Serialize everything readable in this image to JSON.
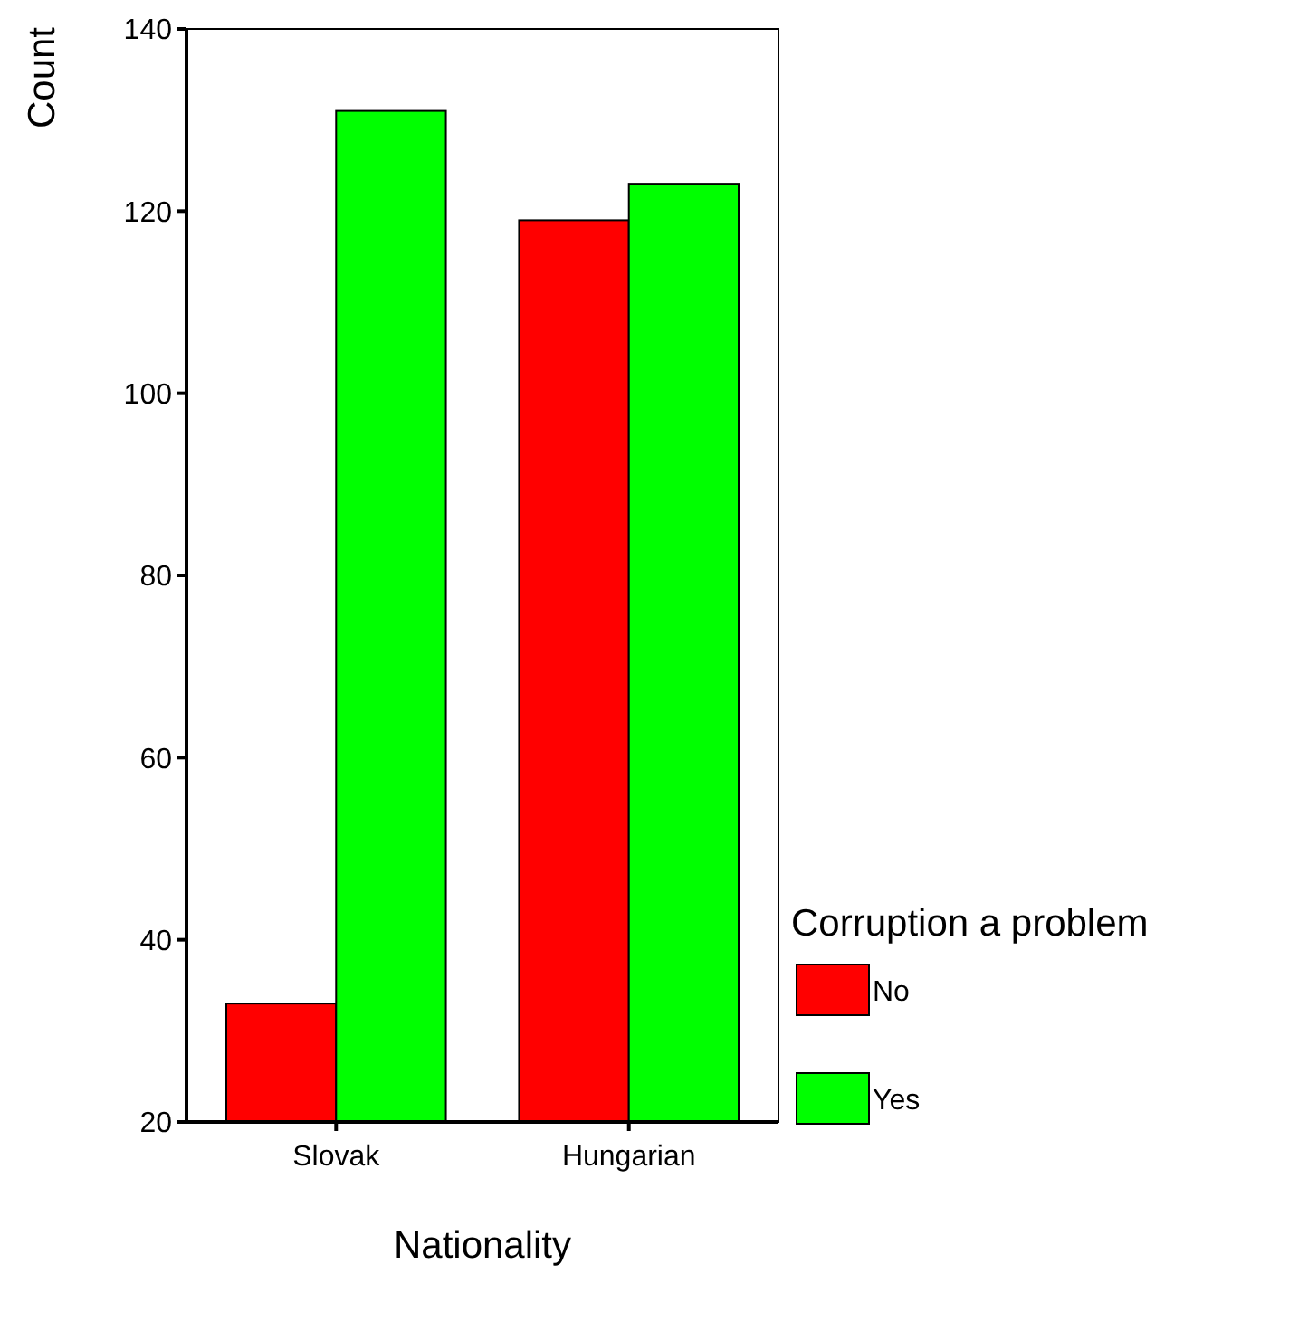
{
  "chart_data": {
    "type": "bar",
    "xlabel": "Nationality",
    "ylabel": "Count",
    "legend_title": "Corruption a problem",
    "categories": [
      "Slovak",
      "Hungarian"
    ],
    "series": [
      {
        "name": "No",
        "color": "#ff0000",
        "values": [
          33,
          119
        ]
      },
      {
        "name": "Yes",
        "color": "#00ff00",
        "values": [
          131,
          123
        ]
      }
    ],
    "ylim": [
      20,
      140
    ],
    "yticks": [
      20,
      40,
      60,
      80,
      100,
      120,
      140
    ],
    "legend": "right"
  }
}
